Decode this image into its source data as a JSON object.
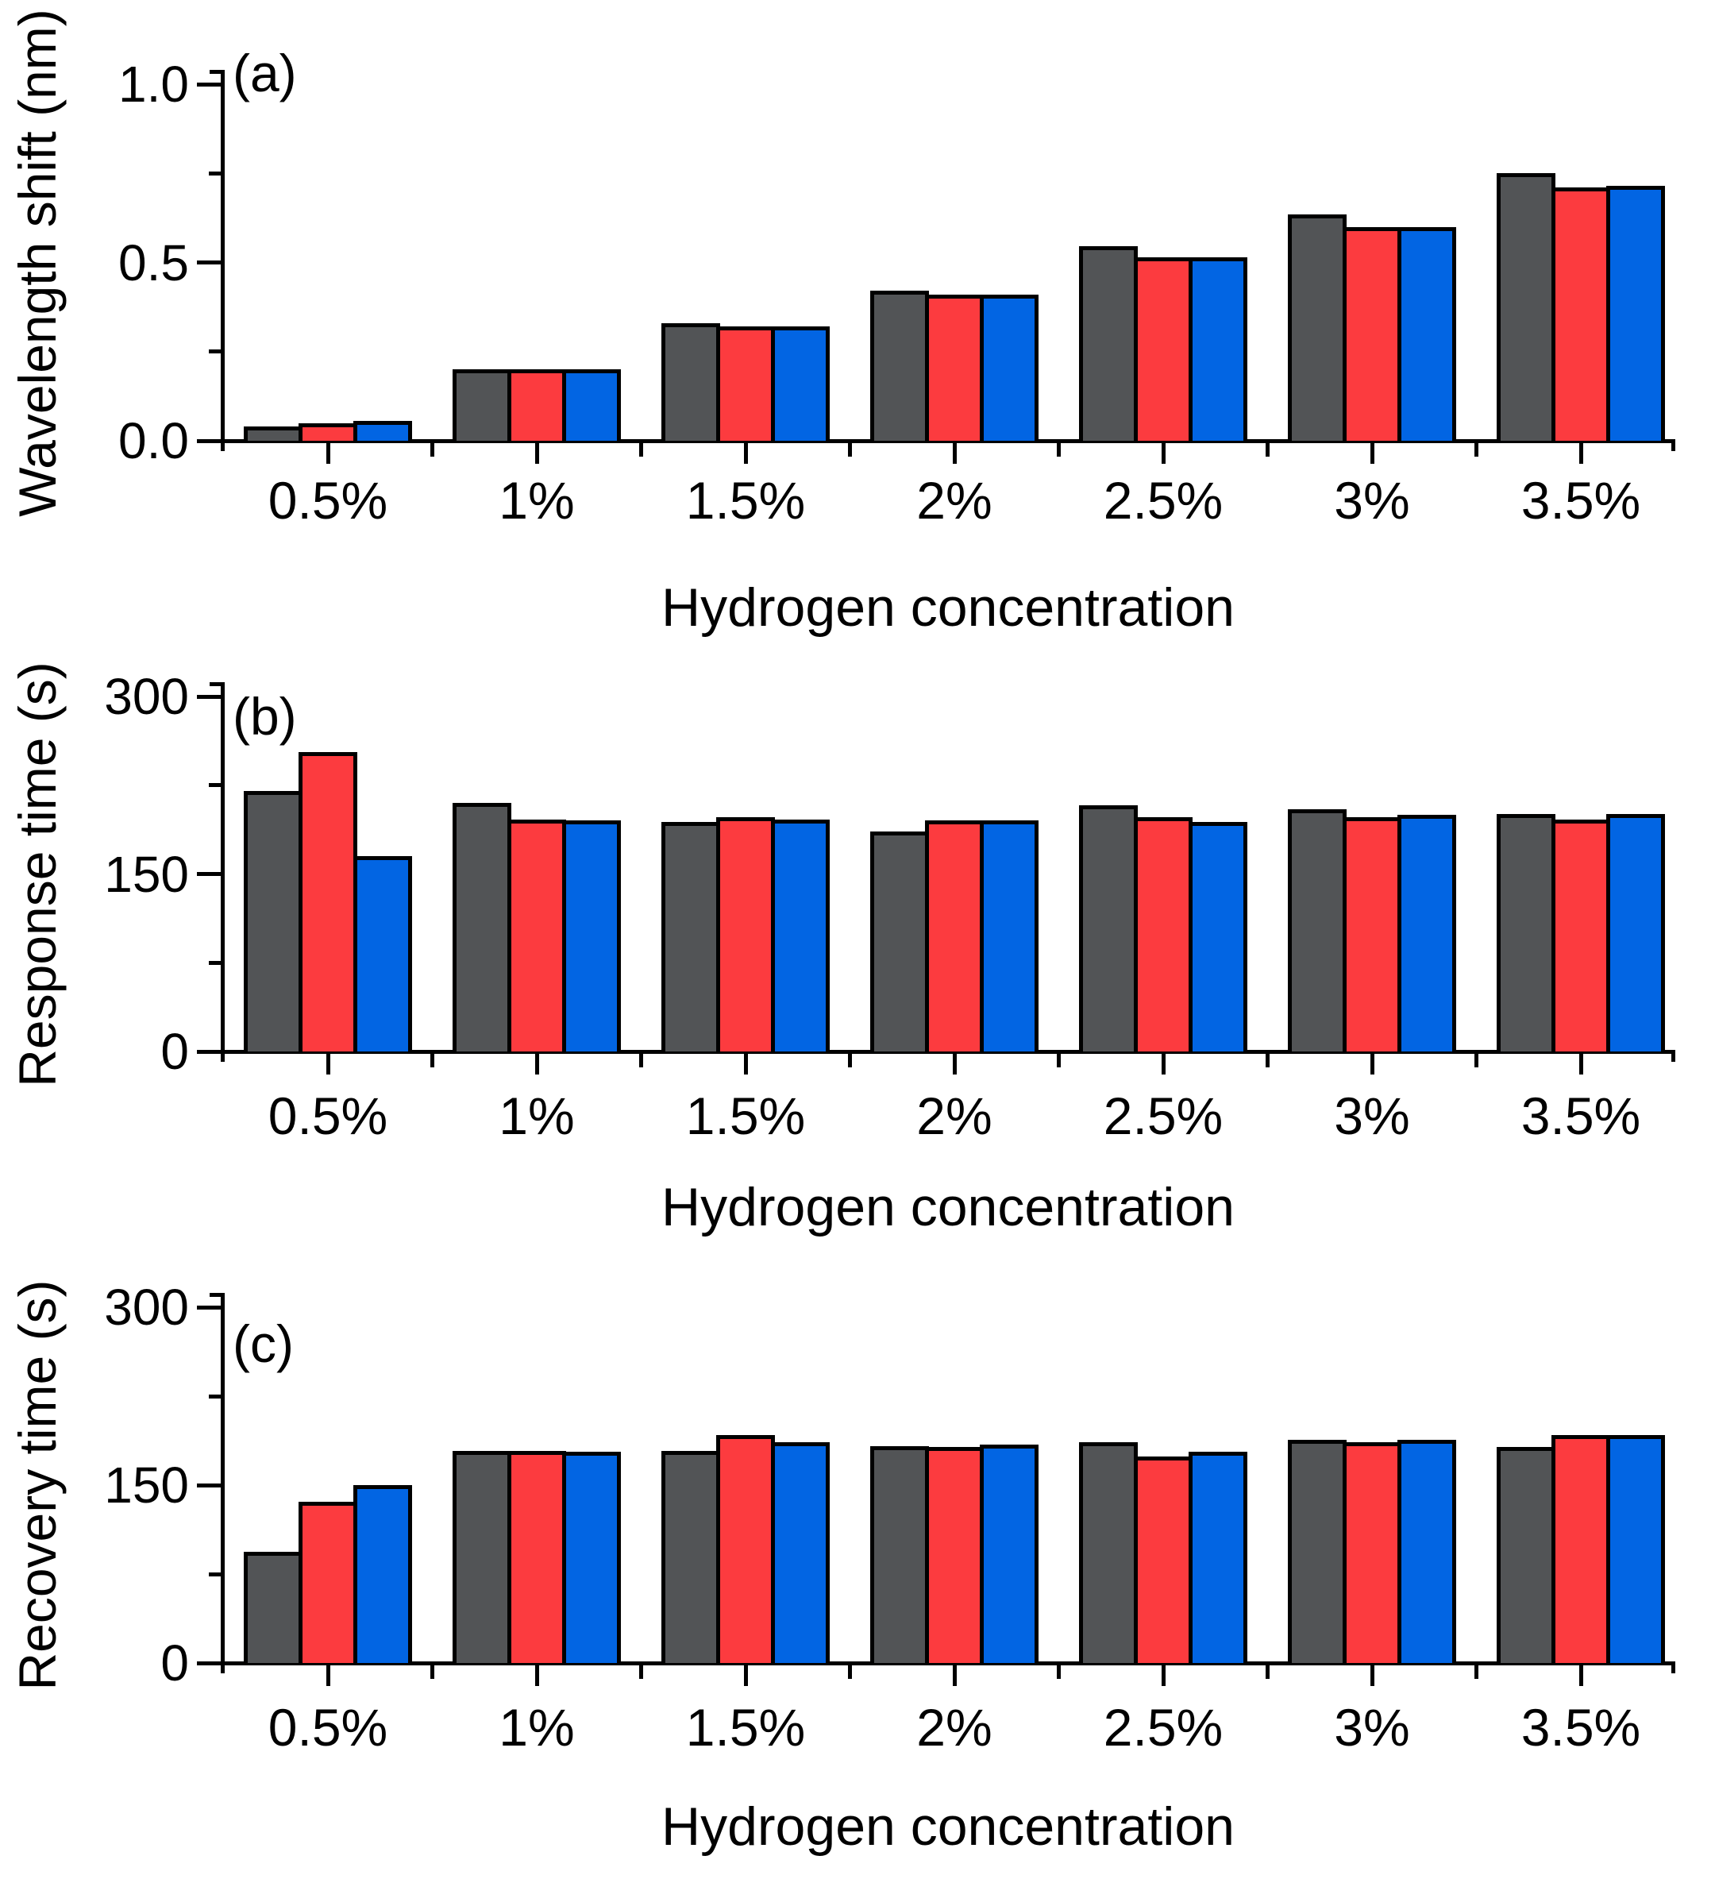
{
  "figure": {
    "background": "#ffffff",
    "series_colors": {
      "dark_gray": "#525456",
      "red": "#fc3b3f",
      "blue": "#0265e3"
    },
    "axis_color": "#000000"
  },
  "chart_data": [
    {
      "panel_label": "(a)",
      "type": "bar",
      "title": "",
      "xlabel": "Hydrogen concentration",
      "ylabel": "Wavelength shift (nm)",
      "categories": [
        "0.5%",
        "1%",
        "1.5%",
        "2%",
        "2.5%",
        "3%",
        "3.5%"
      ],
      "ylim": [
        0,
        1.0
      ],
      "yticks": [
        0,
        0.5,
        1.0
      ],
      "ytick_labels": [
        "0.0",
        "0.5",
        "1.0"
      ],
      "minor_yticks": [
        0.25,
        0.75
      ],
      "grid": false,
      "legend": "none",
      "series": [
        {
          "name": "dark-gray",
          "color": "#525456",
          "values": [
            0.04,
            0.2,
            0.33,
            0.42,
            0.545,
            0.635,
            0.75
          ]
        },
        {
          "name": "red",
          "color": "#fc3b3f",
          "values": [
            0.05,
            0.2,
            0.32,
            0.41,
            0.515,
            0.6,
            0.71
          ]
        },
        {
          "name": "blue",
          "color": "#0265e3",
          "values": [
            0.055,
            0.2,
            0.32,
            0.41,
            0.515,
            0.6,
            0.715
          ]
        }
      ]
    },
    {
      "panel_label": "(b)",
      "type": "bar",
      "title": "",
      "xlabel": "Hydrogen concentration",
      "ylabel": "Response time (s)",
      "categories": [
        "0.5%",
        "1%",
        "1.5%",
        "2%",
        "2.5%",
        "3%",
        "3.5%"
      ],
      "ylim": [
        0,
        300
      ],
      "yticks": [
        0,
        150,
        300
      ],
      "ytick_labels": [
        "0",
        "150",
        "300"
      ],
      "minor_yticks": [
        75,
        225
      ],
      "grid": false,
      "legend": "none",
      "series": [
        {
          "name": "dark-gray",
          "color": "#525456",
          "values": [
            220,
            210,
            194,
            186,
            208,
            205,
            201
          ]
        },
        {
          "name": "red",
          "color": "#fc3b3f",
          "values": [
            253,
            196,
            198,
            195,
            198,
            198,
            196
          ]
        },
        {
          "name": "blue",
          "color": "#0265e3",
          "values": [
            165,
            195,
            196,
            195,
            194,
            200,
            201
          ]
        }
      ]
    },
    {
      "panel_label": "(c)",
      "type": "bar",
      "title": "",
      "xlabel": "Hydrogen concentration",
      "ylabel": "Recovery time (s)",
      "categories": [
        "0.5%",
        "1%",
        "1.5%",
        "2%",
        "2.5%",
        "3%",
        "3.5%"
      ],
      "ylim": [
        0,
        300
      ],
      "yticks": [
        0,
        150,
        300
      ],
      "ytick_labels": [
        "0",
        "150",
        "300"
      ],
      "minor_yticks": [
        75,
        225
      ],
      "grid": false,
      "legend": "none",
      "series": [
        {
          "name": "dark-gray",
          "color": "#525456",
          "values": [
            94,
            179,
            179,
            183,
            186,
            188,
            182
          ]
        },
        {
          "name": "red",
          "color": "#fc3b3f",
          "values": [
            136,
            179,
            192,
            182,
            174,
            186,
            192
          ]
        },
        {
          "name": "blue",
          "color": "#0265e3",
          "values": [
            150,
            178,
            186,
            184,
            178,
            188,
            192
          ]
        }
      ]
    }
  ]
}
